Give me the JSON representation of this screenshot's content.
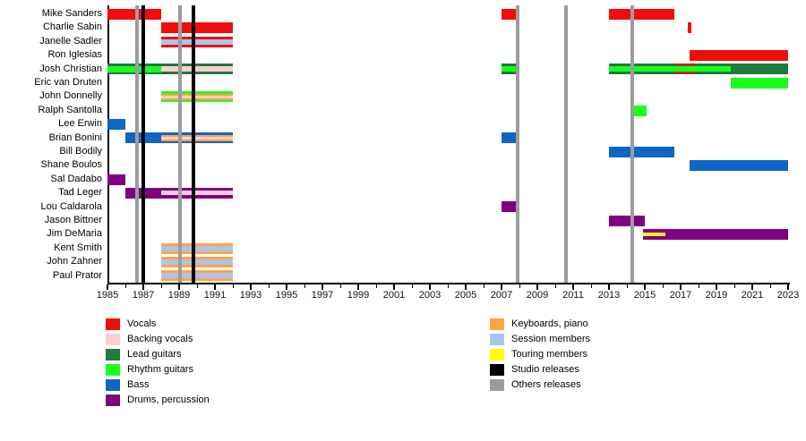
{
  "chart_data": {
    "type": "gantt-timeline",
    "description": "Band members timeline: colored horizontal bars show each member's tenure and roles; vertical lines mark releases.",
    "x_axis": {
      "min": 1985,
      "max": 2023,
      "tick_labels": [
        "1985",
        "1987",
        "1989",
        "1991",
        "1993",
        "1995",
        "1997",
        "1999",
        "2001",
        "2003",
        "2005",
        "2007",
        "2009",
        "2011",
        "2013",
        "2015",
        "2017",
        "2019",
        "2021",
        "2023"
      ],
      "minor_tick_step": 1,
      "grid": false
    },
    "colors": {
      "vocals": "#f20d0d",
      "backing_vocals": "#ffccd5",
      "lead_guitars": "#1c7b3d",
      "rhythm_guitars": "#1aff1a",
      "bass": "#1166c4",
      "drums": "#800080",
      "keyboards": "#ffa43e",
      "session": "#aac4ef",
      "touring": "#ffff00",
      "studio": "#000000",
      "others": "#9c9c9c"
    },
    "members": [
      {
        "name": "Mike Sanders",
        "bars": [
          {
            "start": 1985,
            "end": 1988,
            "base": "vocals"
          },
          {
            "start": 2007,
            "end": 2008,
            "base": "vocals"
          },
          {
            "start": 2013,
            "end": 2016.65,
            "base": "vocals"
          }
        ]
      },
      {
        "name": "Charlie Sabin",
        "bars": [
          {
            "start": 1988,
            "end": 1992,
            "base": "vocals"
          },
          {
            "start": 2017.4,
            "end": 2017.6,
            "base": "vocals"
          }
        ]
      },
      {
        "name": "Janelle Sadler",
        "bars": [
          {
            "start": 1988,
            "end": 1992,
            "base": "vocals",
            "stripes": [
              {
                "role": "session",
                "start": 1988,
                "end": 1992,
                "h": 6
              }
            ]
          }
        ]
      },
      {
        "name": "Ron Iglesias",
        "bars": [
          {
            "start": 2017.5,
            "end": 2023,
            "base": "vocals"
          }
        ]
      },
      {
        "name": "Josh Christian",
        "bars": [
          {
            "start": 1985,
            "end": 1992,
            "base": "lead_guitars",
            "stripes": [
              {
                "role": "rhythm_guitars",
                "start": 1985,
                "end": 1988,
                "h": 7
              },
              {
                "role": "backing_vocals",
                "start": 1988,
                "end": 1992,
                "h": 6
              }
            ]
          },
          {
            "start": 2007,
            "end": 2008,
            "base": "lead_guitars",
            "stripes": [
              {
                "role": "rhythm_guitars",
                "start": 2007,
                "end": 2008,
                "h": 6
              }
            ]
          },
          {
            "start": 2013,
            "end": 2023,
            "base": "lead_guitars",
            "stripes": [
              {
                "role": "rhythm_guitars",
                "start": 2013,
                "end": 2019.8,
                "h": 6
              },
              {
                "role": "vocals",
                "start": 2016.65,
                "end": 2017.85,
                "h": 2,
                "pos": "edges"
              }
            ]
          }
        ]
      },
      {
        "name": "Eric van Druten",
        "bars": [
          {
            "start": 2019.8,
            "end": 2023,
            "base": "rhythm_guitars"
          }
        ]
      },
      {
        "name": "John Donnelly",
        "bars": [
          {
            "start": 1988,
            "end": 1992,
            "base": "rhythm_guitars",
            "stripes": [
              {
                "role": "keyboards",
                "start": 1988,
                "end": 1992,
                "h": 7
              },
              {
                "role": "backing_vocals",
                "start": 1988,
                "end": 1992,
                "h": 3
              }
            ]
          }
        ]
      },
      {
        "name": "Ralph Santolla",
        "bars": [
          {
            "start": 2014.4,
            "end": 2015.1,
            "base": "rhythm_guitars"
          }
        ]
      },
      {
        "name": "Lee Erwin",
        "bars": [
          {
            "start": 1985,
            "end": 1986,
            "base": "bass"
          }
        ]
      },
      {
        "name": "Brian Bonini",
        "bars": [
          {
            "start": 1986,
            "end": 1992,
            "base": "bass",
            "stripes": [
              {
                "role": "keyboards",
                "start": 1988,
                "end": 1992,
                "h": 7
              },
              {
                "role": "backing_vocals",
                "start": 1988,
                "end": 1992,
                "h": 3
              }
            ]
          },
          {
            "start": 2007,
            "end": 2008,
            "base": "bass"
          }
        ]
      },
      {
        "name": "Bill Bodily",
        "bars": [
          {
            "start": 2013,
            "end": 2016.65,
            "base": "bass"
          }
        ]
      },
      {
        "name": "Shane Boulos",
        "bars": [
          {
            "start": 2017.5,
            "end": 2023,
            "base": "bass"
          }
        ]
      },
      {
        "name": "Sal Dadabo",
        "bars": [
          {
            "start": 1985,
            "end": 1986,
            "base": "drums"
          }
        ]
      },
      {
        "name": "Tad Leger",
        "bars": [
          {
            "start": 1986,
            "end": 1992,
            "base": "drums",
            "stripes": [
              {
                "role": "backing_vocals",
                "start": 1988,
                "end": 1992,
                "h": 5
              }
            ]
          }
        ]
      },
      {
        "name": "Lou Caldarola",
        "bars": [
          {
            "start": 2007,
            "end": 2008,
            "base": "drums"
          }
        ]
      },
      {
        "name": "Jason Bittner",
        "bars": [
          {
            "start": 2013,
            "end": 2015,
            "base": "drums"
          }
        ]
      },
      {
        "name": "Jim DeMaria",
        "bars": [
          {
            "start": 2014.9,
            "end": 2023,
            "base": "drums",
            "stripes": [
              {
                "role": "touring",
                "start": 2014.9,
                "end": 2016.15,
                "h": 4
              }
            ]
          }
        ]
      },
      {
        "name": "Kent Smith",
        "bars": [
          {
            "start": 1988,
            "end": 1992,
            "base": "keyboards",
            "stripes": [
              {
                "role": "session",
                "start": 1988,
                "end": 1992,
                "h": 6
              }
            ]
          }
        ]
      },
      {
        "name": "John Zahner",
        "bars": [
          {
            "start": 1988,
            "end": 1992,
            "base": "keyboards",
            "stripes": [
              {
                "role": "session",
                "start": 1988,
                "end": 1992,
                "h": 6
              }
            ]
          }
        ]
      },
      {
        "name": "Paul Prator",
        "bars": [
          {
            "start": 1988,
            "end": 1992,
            "base": "keyboards",
            "stripes": [
              {
                "role": "session",
                "start": 1988,
                "end": 1992,
                "h": 6
              }
            ]
          }
        ]
      }
    ],
    "release_lines": {
      "studio": [
        1987.0,
        1989.8
      ],
      "others": [
        1986.65,
        1989.05,
        2007.9,
        2010.6,
        2014.3
      ]
    },
    "legend": {
      "position": "below-chart, two columns",
      "columns": [
        [
          {
            "label": "Vocals",
            "role": "vocals"
          },
          {
            "label": "Backing vocals",
            "role": "backing_vocals"
          },
          {
            "label": "Lead guitars",
            "role": "lead_guitars"
          },
          {
            "label": "Rhythm guitars",
            "role": "rhythm_guitars"
          },
          {
            "label": "Bass",
            "role": "bass"
          },
          {
            "label": "Drums, percussion",
            "role": "drums"
          }
        ],
        [
          {
            "label": "Keyboards, piano",
            "role": "keyboards"
          },
          {
            "label": "Session members",
            "role": "session"
          },
          {
            "label": "Touring members",
            "role": "touring"
          },
          {
            "label": "Studio releases",
            "role": "studio"
          },
          {
            "label": "Others releases",
            "role": "others"
          }
        ]
      ]
    }
  }
}
